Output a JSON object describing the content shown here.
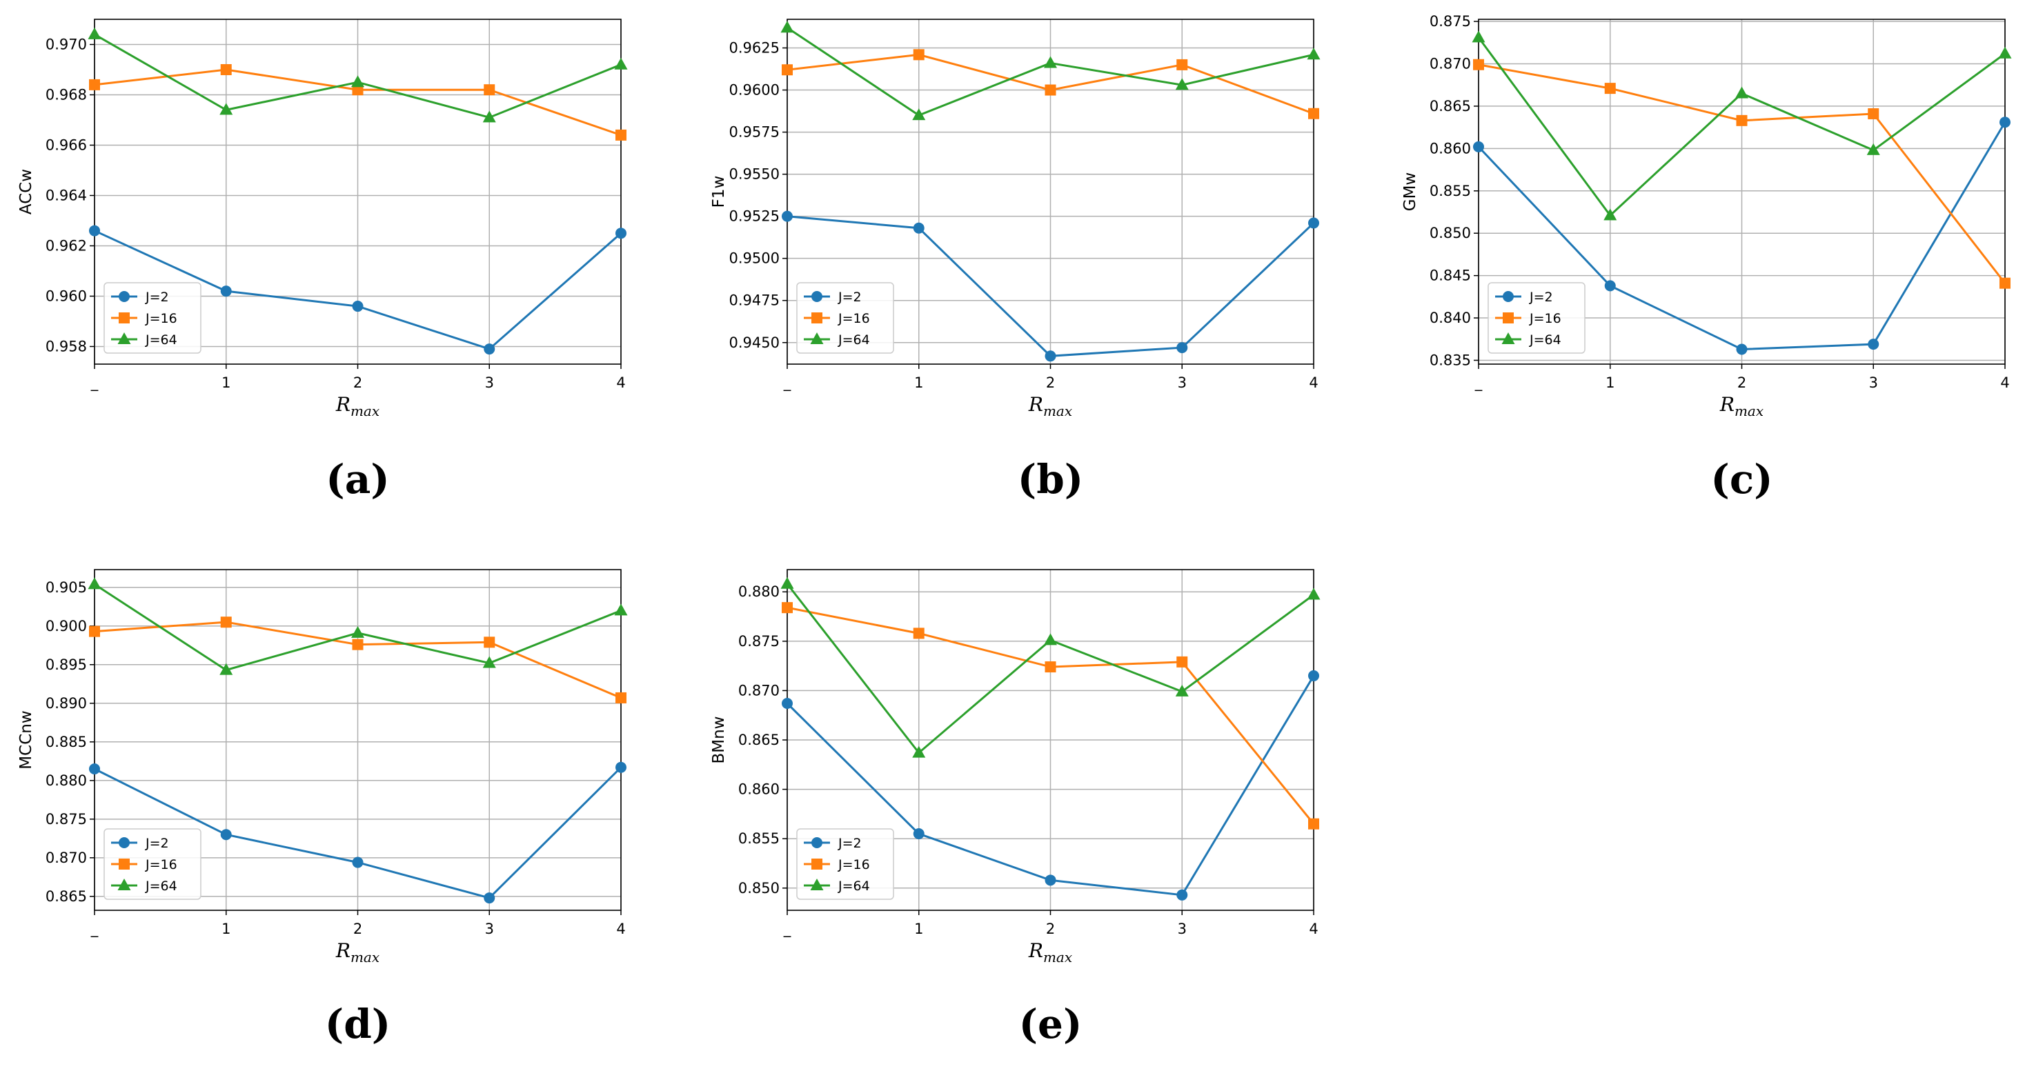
{
  "colors": {
    "J2": "#1f77b4",
    "J16": "#ff7f0e",
    "J64": "#2ca02c",
    "grid": "#b0b0b0",
    "axis": "#000000"
  },
  "chart_data": [
    {
      "type": "line",
      "panel": "(a)",
      "ylabel": "ACCw",
      "xlabel": "R",
      "xlabel_sub": "max",
      "categories": [
        "_",
        "1",
        "2",
        "3",
        "4"
      ],
      "ylim": [
        0.9573,
        0.971
      ],
      "yticks": [
        0.958,
        0.96,
        0.962,
        0.964,
        0.966,
        0.968,
        0.97
      ],
      "ytick_labels": [
        "0.958",
        "0.960",
        "0.962",
        "0.964",
        "0.966",
        "0.968",
        "0.970"
      ],
      "legend_position": "lower-left",
      "series": [
        {
          "name": "J=2",
          "marker": "circle",
          "values": [
            0.9626,
            0.9602,
            0.9596,
            0.9579,
            0.9625
          ]
        },
        {
          "name": "J=16",
          "marker": "square",
          "values": [
            0.9684,
            0.969,
            0.9682,
            0.9682,
            0.9664
          ]
        },
        {
          "name": "J=64",
          "marker": "triangle",
          "values": [
            0.9704,
            0.9674,
            0.9685,
            0.9671,
            0.9692
          ]
        }
      ]
    },
    {
      "type": "line",
      "panel": "(b)",
      "ylabel": "F1w",
      "xlabel": "R",
      "xlabel_sub": "max",
      "categories": [
        "_",
        "1",
        "2",
        "3",
        "4"
      ],
      "ylim": [
        0.94372,
        0.9642
      ],
      "yticks": [
        0.945,
        0.9475,
        0.95,
        0.9525,
        0.955,
        0.9575,
        0.96,
        0.9625
      ],
      "ytick_labels": [
        "0.9450",
        "0.9475",
        "0.9500",
        "0.9525",
        "0.9550",
        "0.9575",
        "0.9600",
        "0.9625"
      ],
      "legend_position": "lower-left",
      "series": [
        {
          "name": "J=2",
          "marker": "circle",
          "values": [
            0.9525,
            0.9518,
            0.9442,
            0.9447,
            0.9521
          ]
        },
        {
          "name": "J=16",
          "marker": "square",
          "values": [
            0.9612,
            0.9621,
            0.96,
            0.9615,
            0.9586
          ]
        },
        {
          "name": "J=64",
          "marker": "triangle",
          "values": [
            0.9637,
            0.9585,
            0.9616,
            0.9603,
            0.9621
          ]
        }
      ]
    },
    {
      "type": "line",
      "panel": "(c)",
      "ylabel": "GMw",
      "xlabel": "R",
      "xlabel_sub": "max",
      "categories": [
        "_",
        "1",
        "2",
        "3",
        "4"
      ],
      "ylim": [
        0.83455,
        0.87525
      ],
      "yticks": [
        0.835,
        0.84,
        0.845,
        0.85,
        0.855,
        0.86,
        0.865,
        0.87,
        0.875
      ],
      "ytick_labels": [
        "0.835",
        "0.840",
        "0.845",
        "0.850",
        "0.855",
        "0.860",
        "0.865",
        "0.870",
        "0.875"
      ],
      "legend_position": "lower-left",
      "series": [
        {
          "name": "J=2",
          "marker": "circle",
          "values": [
            0.8602,
            0.8438,
            0.8363,
            0.8369,
            0.8631
          ]
        },
        {
          "name": "J=16",
          "marker": "square",
          "values": [
            0.8699,
            0.8671,
            0.8633,
            0.8641,
            0.8441
          ]
        },
        {
          "name": "J=64",
          "marker": "triangle",
          "values": [
            0.8731,
            0.8521,
            0.8665,
            0.8598,
            0.8712
          ]
        }
      ]
    },
    {
      "type": "line",
      "panel": "(d)",
      "ylabel": "MCCnw",
      "xlabel": "R",
      "xlabel_sub": "max",
      "categories": [
        "_",
        "1",
        "2",
        "3",
        "4"
      ],
      "ylim": [
        0.8632,
        0.9073
      ],
      "yticks": [
        0.865,
        0.87,
        0.875,
        0.88,
        0.885,
        0.89,
        0.895,
        0.9,
        0.905
      ],
      "ytick_labels": [
        "0.865",
        "0.870",
        "0.875",
        "0.880",
        "0.885",
        "0.890",
        "0.895",
        "0.900",
        "0.905"
      ],
      "legend_position": "lower-left",
      "series": [
        {
          "name": "J=2",
          "marker": "circle",
          "values": [
            0.8815,
            0.873,
            0.8694,
            0.8648,
            0.8817
          ]
        },
        {
          "name": "J=16",
          "marker": "square",
          "values": [
            0.8993,
            0.9005,
            0.8976,
            0.8979,
            0.8907
          ]
        },
        {
          "name": "J=64",
          "marker": "triangle",
          "values": [
            0.9054,
            0.8943,
            0.8991,
            0.8952,
            0.902
          ]
        }
      ]
    },
    {
      "type": "line",
      "panel": "(e)",
      "ylabel": "BMnw",
      "xlabel": "R",
      "xlabel_sub": "max",
      "categories": [
        "_",
        "1",
        "2",
        "3",
        "4"
      ],
      "ylim": [
        0.84775,
        0.88225
      ],
      "yticks": [
        0.85,
        0.855,
        0.86,
        0.865,
        0.87,
        0.875,
        0.88
      ],
      "ytick_labels": [
        "0.850",
        "0.855",
        "0.860",
        "0.865",
        "0.870",
        "0.875",
        "0.880"
      ],
      "legend_position": "lower-left",
      "series": [
        {
          "name": "J=2",
          "marker": "circle",
          "values": [
            0.8687,
            0.8555,
            0.8508,
            0.8493,
            0.8715
          ]
        },
        {
          "name": "J=16",
          "marker": "square",
          "values": [
            0.8784,
            0.8758,
            0.8724,
            0.8729,
            0.8565
          ]
        },
        {
          "name": "J=64",
          "marker": "triangle",
          "values": [
            0.8808,
            0.8637,
            0.8751,
            0.8699,
            0.8797
          ]
        }
      ]
    }
  ]
}
